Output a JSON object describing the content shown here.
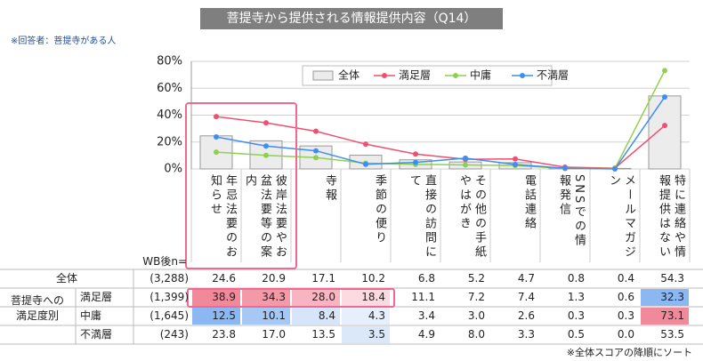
{
  "title": "菩提寺から提供される情報提供内容（Q14）",
  "note": "※回答者：菩提寺がある人",
  "footnote": "※全体スコアの降順にソート",
  "chart_data": {
    "type": "bar",
    "categories": [
      "年忌法要のお知らせ",
      "彼岸法要やお盆法要等の案内",
      "寺報",
      "季節の便り",
      "直接の訪問にて",
      "その他の手紙やはがき",
      "電話連絡",
      "SNSでの情報発信",
      "メールマガジン",
      "特に連絡や情報提供はない"
    ],
    "ylim": [
      0,
      80
    ],
    "yticks": [
      {
        "value": 0,
        "label": "0%"
      },
      {
        "value": 20,
        "label": "20%"
      },
      {
        "value": 40,
        "label": "40%"
      },
      {
        "value": 60,
        "label": "60%"
      },
      {
        "value": 80,
        "label": "80%"
      }
    ],
    "series": [
      {
        "name": "全体",
        "type": "bar",
        "color": "#ececec",
        "n": "(3,288)",
        "values": [
          24.6,
          20.9,
          17.1,
          10.2,
          6.8,
          5.2,
          4.7,
          0.8,
          0.4,
          54.3
        ],
        "value_labels": [
          "24.6",
          "20.9",
          "17.1",
          "10.2",
          "6.8",
          "5.2",
          "4.7",
          "0.8",
          "0.4",
          "54.3"
        ]
      },
      {
        "name": "満足層",
        "type": "line",
        "color": "#f0506e",
        "n": "(1,399)",
        "values": [
          38.9,
          34.3,
          28.0,
          18.4,
          11.1,
          7.2,
          7.4,
          1.3,
          0.6,
          32.3
        ],
        "value_labels": [
          "38.9",
          "34.3",
          "28.0",
          "18.4",
          "11.1",
          "7.2",
          "7.4",
          "1.3",
          "0.6",
          "32.3"
        ]
      },
      {
        "name": "中庸",
        "type": "line",
        "color": "#8fd14f",
        "n": "(1,645)",
        "values": [
          12.5,
          10.1,
          8.4,
          4.3,
          3.4,
          3.0,
          2.6,
          0.3,
          0.3,
          73.1
        ],
        "value_labels": [
          "12.5",
          "10.1",
          "8.4",
          "4.3",
          "3.4",
          "3.0",
          "2.6",
          "0.3",
          "0.3",
          "73.1"
        ]
      },
      {
        "name": "不満層",
        "type": "line",
        "color": "#3d8ef0",
        "n": "(243)",
        "values": [
          23.8,
          17.0,
          13.5,
          3.5,
          4.9,
          8.0,
          3.3,
          0.5,
          0.0,
          53.5
        ],
        "value_labels": [
          "23.8",
          "17.0",
          "13.5",
          "3.5",
          "4.9",
          "8.0",
          "3.3",
          "0.5",
          "0.0",
          "53.5"
        ]
      }
    ],
    "table": {
      "n_header": "WB後n=",
      "group_label": "菩提寺への満足度別"
    }
  }
}
